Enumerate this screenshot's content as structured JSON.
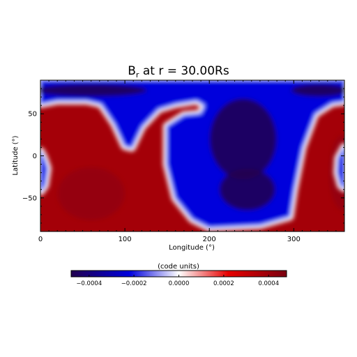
{
  "chart_data": {
    "type": "heatmap",
    "title": "B",
    "title_subscript": "r",
    "title_suffix": " at r = 30.00Rs",
    "xlabel": "Longitude (°)",
    "ylabel": "Latitude (°)",
    "xlim": [
      0,
      360
    ],
    "ylim": [
      -90,
      90
    ],
    "x_ticks": [
      0,
      100,
      200,
      300
    ],
    "y_ticks": [
      -50,
      0,
      50
    ],
    "x_tick_labels": [
      "0",
      "100",
      "200",
      "300"
    ],
    "y_tick_labels": [
      "−50",
      "0",
      "50"
    ],
    "colorbar": {
      "label": "(code units)",
      "range": [
        -0.00048,
        0.00048
      ],
      "ticks": [
        -0.0004,
        -0.0002,
        0.0,
        0.0002,
        0.0004
      ],
      "tick_labels": [
        "−0.0004",
        "−0.0002",
        "0.0000",
        "0.0002",
        "0.0004"
      ],
      "colors": [
        "#22004e",
        "#0000dc",
        "#ffffff",
        "#e60000",
        "#7a0010"
      ]
    },
    "negative_polarity_regions": [
      {
        "name": "main-negative-region",
        "outline_lon_lat": [
          [
            0,
            90
          ],
          [
            360,
            90
          ],
          [
            360,
            65
          ],
          [
            345,
            63
          ],
          [
            325,
            50
          ],
          [
            310,
            10
          ],
          [
            300,
            -40
          ],
          [
            295,
            -72
          ],
          [
            260,
            -82
          ],
          [
            200,
            -85
          ],
          [
            180,
            -75
          ],
          [
            160,
            -50
          ],
          [
            150,
            -10
          ],
          [
            150,
            35
          ],
          [
            170,
            48
          ],
          [
            190,
            50
          ],
          [
            195,
            60
          ],
          [
            185,
            66
          ],
          [
            160,
            62
          ],
          [
            140,
            56
          ],
          [
            120,
            35
          ],
          [
            108,
            10
          ],
          [
            100,
            12
          ],
          [
            88,
            38
          ],
          [
            72,
            62
          ],
          [
            55,
            66
          ],
          [
            20,
            66
          ],
          [
            0,
            62
          ]
        ]
      },
      {
        "name": "west-edge-negative-lobe",
        "outline_lon_lat": [
          [
            0,
            5
          ],
          [
            4,
            -3
          ],
          [
            8,
            -15
          ],
          [
            5,
            -35
          ],
          [
            0,
            -42
          ]
        ]
      },
      {
        "name": "east-edge-negative-lobe",
        "outline_lon_lat": [
          [
            360,
            10
          ],
          [
            353,
            -3
          ],
          [
            352,
            -20
          ],
          [
            356,
            -35
          ],
          [
            360,
            -38
          ]
        ]
      }
    ]
  }
}
